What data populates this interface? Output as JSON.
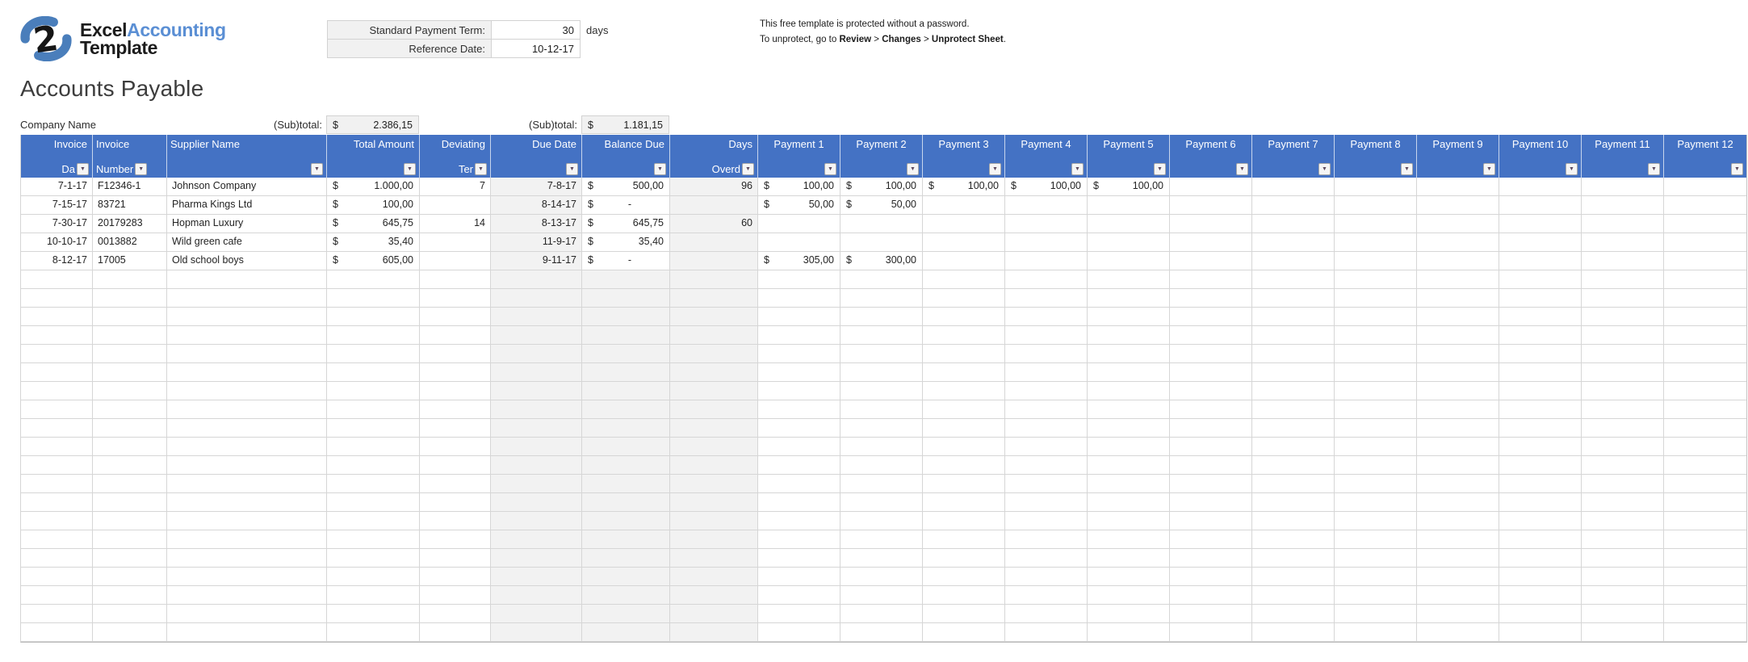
{
  "logo": {
    "excel": "Excel",
    "accounting": "Accounting",
    "template": "Template"
  },
  "settings": {
    "payment_term_label": "Standard Payment Term:",
    "payment_term_value": "30",
    "payment_term_unit": "days",
    "reference_date_label": "Reference Date:",
    "reference_date_value": "10-12-17"
  },
  "protection": {
    "line1": "This free template is protected without a password.",
    "line2": {
      "prefix": "To unprotect, go to ",
      "review": "Review",
      "sep1": " > ",
      "changes": "Changes",
      "sep2": " > ",
      "unprotect": "Unprotect Sheet",
      "suffix": "."
    }
  },
  "page": {
    "title": "Accounts Payable",
    "company_name": "Company Name"
  },
  "subtotals": [
    {
      "label": "(Sub)total:",
      "currency": "$",
      "value": "2.386,15"
    },
    {
      "label": "(Sub)total:",
      "currency": "$",
      "value": "1.181,15"
    }
  ],
  "table": {
    "currency_symbol": "$",
    "columns": [
      {
        "id": "invoice_date",
        "line1": "Invoice",
        "line2": "Da",
        "align": "right",
        "type": "date"
      },
      {
        "id": "invoice_number",
        "line1": "Invoice",
        "line2": "Number",
        "align": "left",
        "type": "text"
      },
      {
        "id": "supplier_name",
        "line1": "Supplier Name",
        "line2": "",
        "align": "left",
        "type": "text"
      },
      {
        "id": "total_amount",
        "line1": "Total Amount",
        "line2": "",
        "align": "right",
        "type": "currency"
      },
      {
        "id": "deviating_term",
        "line1": "Deviating",
        "line2": "Ter",
        "align": "right",
        "type": "number"
      },
      {
        "id": "due_date",
        "line1": "Due Date",
        "line2": "",
        "align": "right",
        "type": "date",
        "shaded": true
      },
      {
        "id": "balance_due",
        "line1": "Balance Due",
        "line2": "",
        "align": "right",
        "type": "currency",
        "shaded_when_empty": true
      },
      {
        "id": "days_overdue",
        "line1": "Days",
        "line2": "Overd",
        "align": "right",
        "type": "number",
        "shaded": true
      },
      {
        "id": "payment_1",
        "line1": "Payment 1",
        "line2": "",
        "align": "center",
        "type": "currency"
      },
      {
        "id": "payment_2",
        "line1": "Payment 2",
        "line2": "",
        "align": "center",
        "type": "currency"
      },
      {
        "id": "payment_3",
        "line1": "Payment 3",
        "line2": "",
        "align": "center",
        "type": "currency"
      },
      {
        "id": "payment_4",
        "line1": "Payment 4",
        "line2": "",
        "align": "center",
        "type": "currency"
      },
      {
        "id": "payment_5",
        "line1": "Payment 5",
        "line2": "",
        "align": "center",
        "type": "currency"
      },
      {
        "id": "payment_6",
        "line1": "Payment 6",
        "line2": "",
        "align": "center",
        "type": "currency"
      },
      {
        "id": "payment_7",
        "line1": "Payment 7",
        "line2": "",
        "align": "center",
        "type": "currency"
      },
      {
        "id": "payment_8",
        "line1": "Payment 8",
        "line2": "",
        "align": "center",
        "type": "currency"
      },
      {
        "id": "payment_9",
        "line1": "Payment 9",
        "line2": "",
        "align": "center",
        "type": "currency"
      },
      {
        "id": "payment_10",
        "line1": "Payment 10",
        "line2": "",
        "align": "center",
        "type": "currency"
      },
      {
        "id": "payment_11",
        "line1": "Payment 11",
        "line2": "",
        "align": "center",
        "type": "currency"
      },
      {
        "id": "payment_12",
        "line1": "Payment 12",
        "line2": "",
        "align": "center",
        "type": "currency"
      }
    ],
    "rows": [
      {
        "invoice_date": "7-1-17",
        "invoice_number": "F12346-1",
        "supplier_name": "Johnson Company",
        "total_amount": "1.000,00",
        "deviating_term": "7",
        "due_date": "7-8-17",
        "balance_due": "500,00",
        "days_overdue": "96",
        "payment_1": "100,00",
        "payment_2": "100,00",
        "payment_3": "100,00",
        "payment_4": "100,00",
        "payment_5": "100,00"
      },
      {
        "invoice_date": "7-15-17",
        "invoice_number": "83721",
        "supplier_name": "Pharma Kings Ltd",
        "total_amount": "100,00",
        "due_date": "8-14-17",
        "balance_due": "-",
        "payment_1": "50,00",
        "payment_2": "50,00"
      },
      {
        "invoice_date": "7-30-17",
        "invoice_number": "20179283",
        "supplier_name": "Hopman Luxury",
        "total_amount": "645,75",
        "deviating_term": "14",
        "due_date": "8-13-17",
        "balance_due": "645,75",
        "days_overdue": "60"
      },
      {
        "invoice_date": "10-10-17",
        "invoice_number": "0013882",
        "supplier_name": "Wild green cafe",
        "total_amount": "35,40",
        "due_date": "11-9-17",
        "balance_due": "35,40"
      },
      {
        "invoice_date": "8-12-17",
        "invoice_number": "17005",
        "supplier_name": "Old school boys",
        "total_amount": "605,00",
        "due_date": "9-11-17",
        "balance_due": "-",
        "payment_1": "305,00",
        "payment_2": "300,00"
      }
    ],
    "empty_row_count": 20
  },
  "colors": {
    "header_blue": "#4472c4",
    "shaded_cell": "#f2f2f2",
    "grid_line": "#d6d6d6",
    "logo_blue": "#4a7ebb",
    "logo_text_blue": "#5b8fd4",
    "filter_arrow": "#5d4a5e"
  }
}
